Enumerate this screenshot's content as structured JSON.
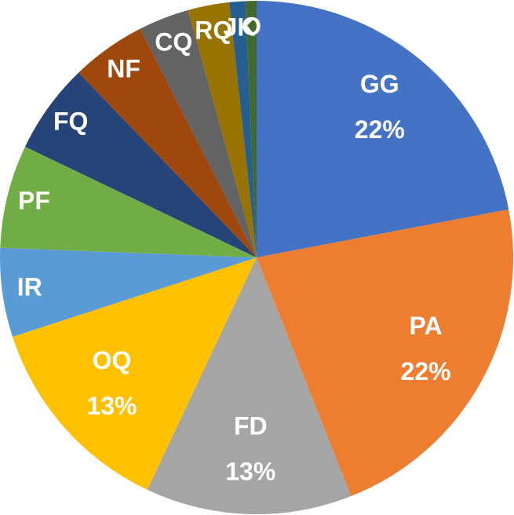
{
  "chart_data": {
    "type": "pie",
    "categories": [
      "GG",
      "PA",
      "FD",
      "OQ",
      "IR",
      "PF",
      "FQ",
      "NF",
      "CQ",
      "RQ",
      "JK",
      "O"
    ],
    "values": [
      22,
      22,
      13,
      13,
      5.6,
      6.5,
      5.7,
      4.7,
      3.2,
      2.6,
      1,
      0.7
    ],
    "value_labels": [
      "22%",
      "22%",
      "13%",
      "13%",
      null,
      null,
      null,
      null,
      null,
      null,
      null,
      null
    ],
    "colors": [
      "#4472c4",
      "#ed7d31",
      "#a5a5a5",
      "#ffc000",
      "#5b9bd5",
      "#70ad47",
      "#264478",
      "#9e480e",
      "#636363",
      "#997300",
      "#255e91",
      "#43682b"
    ]
  }
}
